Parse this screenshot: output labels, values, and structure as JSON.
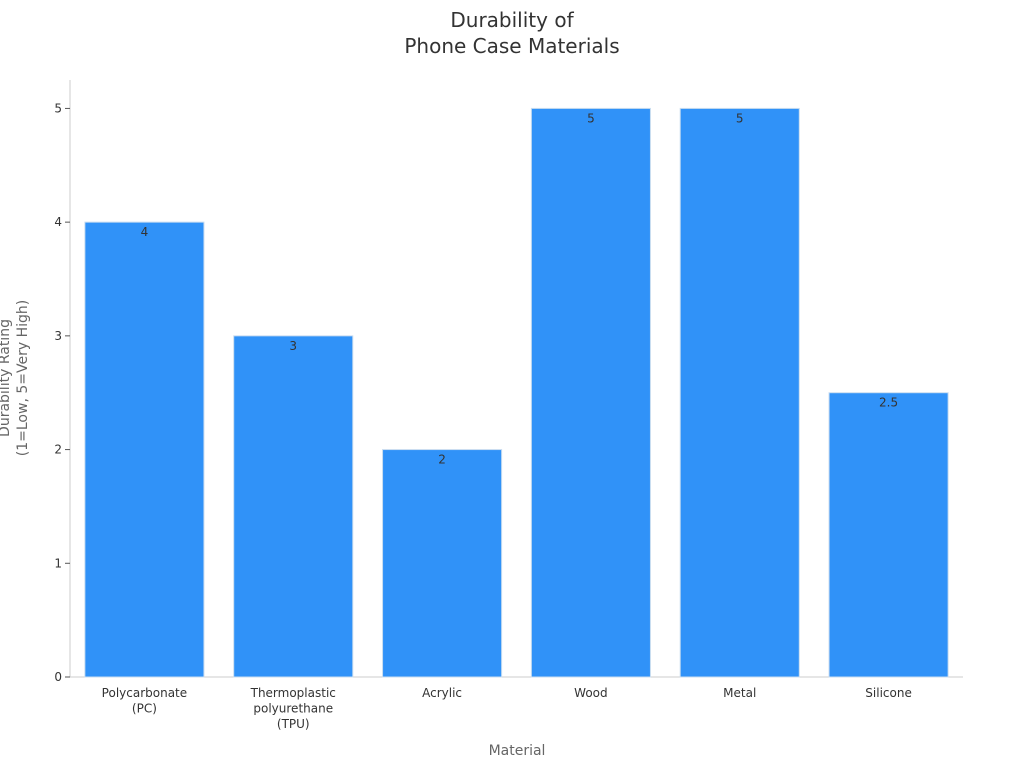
{
  "chart_data": {
    "type": "bar",
    "title": "Durability of\nPhone Case Materials",
    "x_label": "Material",
    "y_label": "Durability Rating\n(1=Low, 5=Very High)",
    "categories": [
      "Polycarbonate\n(PC)",
      "Thermoplastic\npolyurethane\n(TPU)",
      "Acrylic",
      "Wood",
      "Metal",
      "Silicone"
    ],
    "values": [
      4,
      3,
      2,
      5,
      5,
      2.5
    ],
    "color": "#3092f8",
    "ylim": [
      0,
      5.25
    ],
    "yticks": [
      0,
      1,
      2,
      3,
      4,
      5
    ],
    "grid": false
  }
}
